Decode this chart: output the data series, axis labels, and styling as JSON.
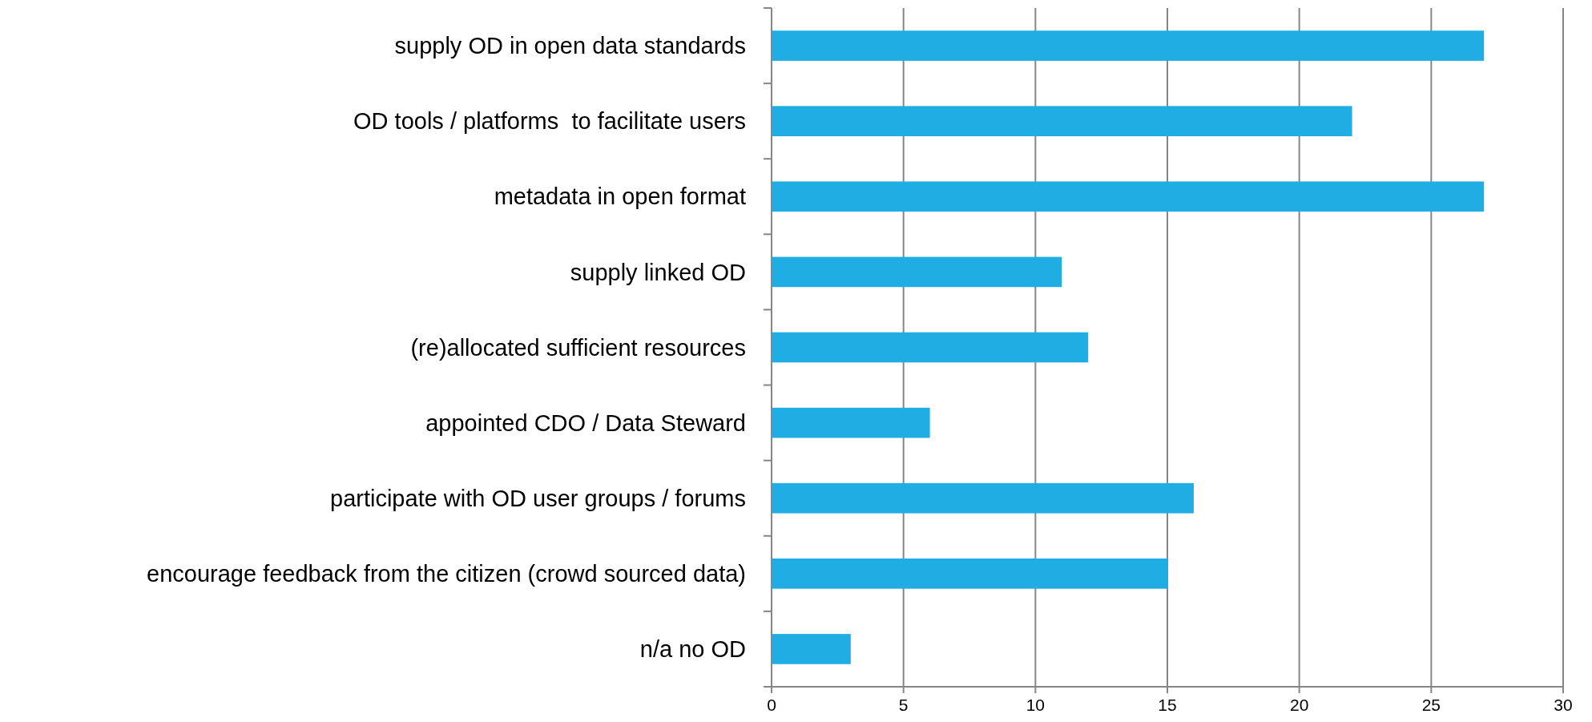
{
  "chart_data": {
    "type": "bar",
    "orientation": "horizontal",
    "categories": [
      "supply OD in open data standards",
      "OD tools / platforms  to facilitate users",
      "metadata in open format",
      "supply linked OD",
      "(re)allocated sufficient resources",
      "appointed CDO / Data Steward",
      "participate with OD user groups / forums",
      "encourage feedback from the citizen (crowd sourced data)",
      "n/a no OD"
    ],
    "values": [
      27,
      22,
      27,
      11,
      12,
      6,
      16,
      15,
      3
    ],
    "color": "#1fade4",
    "xlim": [
      0,
      30
    ],
    "xticks": [
      0,
      5,
      10,
      15,
      20,
      25,
      30
    ],
    "grid": "x"
  }
}
